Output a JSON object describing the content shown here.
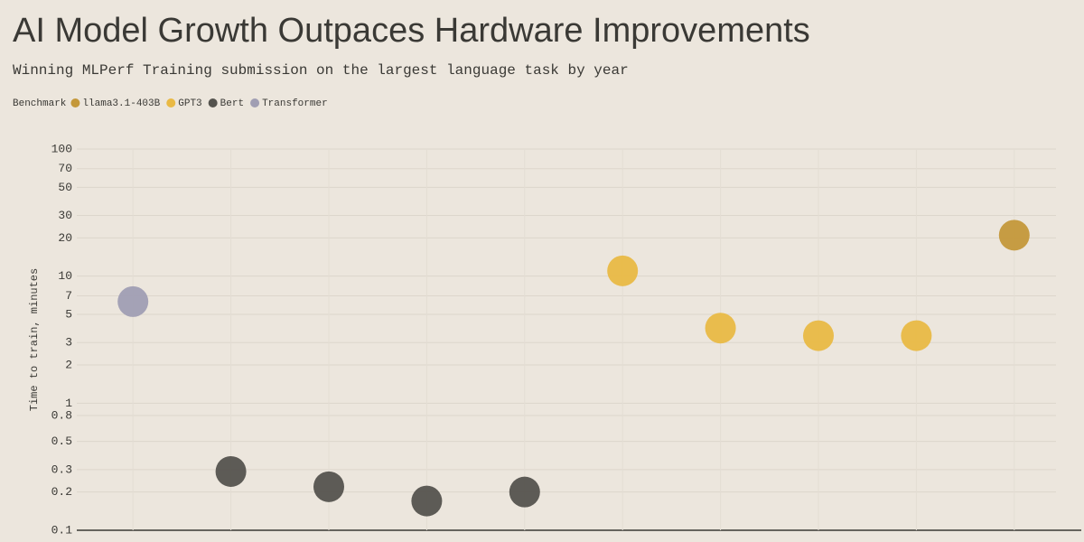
{
  "chart_data": {
    "type": "scatter",
    "title": "AI Model Growth Outpaces Hardware Improvements",
    "subtitle": "Winning MLPerf Training submission on the largest language task by year",
    "legend_title": "Benchmark",
    "y_label": "Time to train, minutes",
    "categories": [
      null,
      null,
      null,
      null,
      null,
      null,
      null,
      null,
      null,
      null
    ],
    "series": [
      {
        "name": "llama3.1-403B",
        "color": "#c4983a",
        "values": [
          null,
          null,
          null,
          null,
          null,
          null,
          null,
          null,
          null,
          21
        ]
      },
      {
        "name": "GPT3",
        "color": "#e9b944",
        "values": [
          null,
          null,
          null,
          null,
          null,
          11,
          3.9,
          3.4,
          3.4,
          null
        ]
      },
      {
        "name": "Bert",
        "color": "#55534e",
        "values": [
          null,
          0.29,
          0.22,
          0.17,
          0.2,
          null,
          null,
          null,
          null,
          null
        ]
      },
      {
        "name": "Transformer",
        "color": "#a09eb3",
        "values": [
          6.3,
          null,
          null,
          null,
          null,
          null,
          null,
          null,
          null,
          null
        ]
      }
    ],
    "ylim": [
      0.1,
      100
    ],
    "yscale": "log",
    "yticks": [
      0.1,
      0.2,
      0.3,
      0.5,
      0.8,
      1,
      2,
      3,
      5,
      7,
      10,
      20,
      30,
      50,
      70,
      100
    ],
    "grid": true
  }
}
